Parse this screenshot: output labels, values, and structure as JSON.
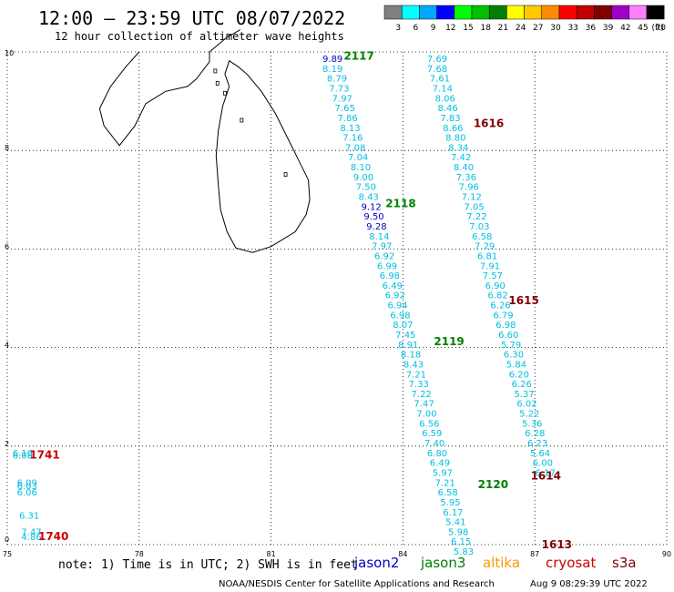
{
  "title": "12:00 – 23:59 UTC 08/07/2022",
  "subtitle": "12 hour collection of altimeter wave heights",
  "colorbar": {
    "unit": "(ft)",
    "bins": [
      {
        "label": "3",
        "color": "#7f7f7f"
      },
      {
        "label": "6",
        "color": "#00ffff"
      },
      {
        "label": "9",
        "color": "#00a8ff"
      },
      {
        "label": "12",
        "color": "#0000ff"
      },
      {
        "label": "15",
        "color": "#00ff00"
      },
      {
        "label": "18",
        "color": "#00c000"
      },
      {
        "label": "21",
        "color": "#008000"
      },
      {
        "label": "24",
        "color": "#ffff00"
      },
      {
        "label": "27",
        "color": "#ffc800"
      },
      {
        "label": "30",
        "color": "#ff8c00"
      },
      {
        "label": "33",
        "color": "#ff0000"
      },
      {
        "label": "36",
        "color": "#c00000"
      },
      {
        "label": "39",
        "color": "#800000"
      },
      {
        "label": "42",
        "color": "#a000c8"
      },
      {
        "label": "45",
        "color": "#ff80ff"
      },
      {
        "label": "70",
        "color": "#000000"
      }
    ]
  },
  "axes": {
    "lon_min": 75,
    "lon_max": 90,
    "lat_min": 0,
    "lat_max": 10,
    "x_ticks": [
      "75",
      "78",
      "81",
      "84",
      "87",
      "90"
    ],
    "y_ticks": [
      "0",
      "2",
      "4",
      "6",
      "8",
      "10"
    ],
    "grid": "dotted"
  },
  "colors": {
    "jason2": "#0000c8",
    "jason3": "#008000",
    "altika": "#ff9900",
    "cryosat": "#cc0000",
    "s3a": "#800000",
    "cyan": "#00bfe0"
  },
  "swh_marks": [
    {
      "lon": 82.4,
      "lat": 9.87,
      "v": "9.89",
      "c": "jason2"
    },
    {
      "lon": 82.4,
      "lat": 9.67,
      "v": "8.19",
      "c": "cyan"
    },
    {
      "lon": 82.5,
      "lat": 9.47,
      "v": "8.79",
      "c": "cyan"
    },
    {
      "lon": 82.55,
      "lat": 9.27,
      "v": "7.73",
      "c": "cyan"
    },
    {
      "lon": 82.62,
      "lat": 9.07,
      "v": "7.97",
      "c": "cyan"
    },
    {
      "lon": 82.68,
      "lat": 8.87,
      "v": "7.65",
      "c": "cyan"
    },
    {
      "lon": 82.74,
      "lat": 8.67,
      "v": "7.86",
      "c": "cyan"
    },
    {
      "lon": 82.8,
      "lat": 8.47,
      "v": "8.13",
      "c": "cyan"
    },
    {
      "lon": 82.86,
      "lat": 8.27,
      "v": "7.16",
      "c": "cyan"
    },
    {
      "lon": 82.92,
      "lat": 8.07,
      "v": "7.08",
      "c": "cyan"
    },
    {
      "lon": 82.98,
      "lat": 7.87,
      "v": "7.04",
      "c": "cyan"
    },
    {
      "lon": 83.04,
      "lat": 7.67,
      "v": "8.10",
      "c": "cyan"
    },
    {
      "lon": 83.1,
      "lat": 7.47,
      "v": "9.00",
      "c": "cyan"
    },
    {
      "lon": 83.16,
      "lat": 7.27,
      "v": "7.50",
      "c": "cyan"
    },
    {
      "lon": 83.22,
      "lat": 7.07,
      "v": "8.43",
      "c": "cyan"
    },
    {
      "lon": 83.28,
      "lat": 6.87,
      "v": "9.12",
      "c": "jason2"
    },
    {
      "lon": 83.34,
      "lat": 6.67,
      "v": "9.50",
      "c": "jason2"
    },
    {
      "lon": 83.4,
      "lat": 6.47,
      "v": "9.28",
      "c": "jason2"
    },
    {
      "lon": 83.46,
      "lat": 6.27,
      "v": "8.14",
      "c": "cyan"
    },
    {
      "lon": 83.52,
      "lat": 6.07,
      "v": "7.97",
      "c": "cyan"
    },
    {
      "lon": 83.58,
      "lat": 5.87,
      "v": "6.92",
      "c": "cyan"
    },
    {
      "lon": 83.64,
      "lat": 5.67,
      "v": "6.99",
      "c": "cyan"
    },
    {
      "lon": 83.7,
      "lat": 5.47,
      "v": "6.98",
      "c": "cyan"
    },
    {
      "lon": 83.76,
      "lat": 5.27,
      "v": "6.49",
      "c": "cyan"
    },
    {
      "lon": 83.82,
      "lat": 5.07,
      "v": "6.92",
      "c": "cyan"
    },
    {
      "lon": 83.88,
      "lat": 4.87,
      "v": "6.94",
      "c": "cyan"
    },
    {
      "lon": 83.94,
      "lat": 4.67,
      "v": "6.98",
      "c": "cyan"
    },
    {
      "lon": 84.0,
      "lat": 4.47,
      "v": "8.07",
      "c": "cyan"
    },
    {
      "lon": 84.06,
      "lat": 4.27,
      "v": "7.45",
      "c": "cyan"
    },
    {
      "lon": 84.12,
      "lat": 4.07,
      "v": "8.91",
      "c": "cyan"
    },
    {
      "lon": 84.18,
      "lat": 3.87,
      "v": "8.18",
      "c": "cyan"
    },
    {
      "lon": 84.24,
      "lat": 3.67,
      "v": "8.43",
      "c": "cyan"
    },
    {
      "lon": 84.3,
      "lat": 3.47,
      "v": "7.21",
      "c": "cyan"
    },
    {
      "lon": 84.36,
      "lat": 3.27,
      "v": "7.33",
      "c": "cyan"
    },
    {
      "lon": 84.42,
      "lat": 3.07,
      "v": "7.22",
      "c": "cyan"
    },
    {
      "lon": 84.48,
      "lat": 2.87,
      "v": "7.47",
      "c": "cyan"
    },
    {
      "lon": 84.54,
      "lat": 2.67,
      "v": "7.00",
      "c": "cyan"
    },
    {
      "lon": 84.6,
      "lat": 2.47,
      "v": "6.56",
      "c": "cyan"
    },
    {
      "lon": 84.66,
      "lat": 2.27,
      "v": "6.59",
      "c": "cyan"
    },
    {
      "lon": 84.72,
      "lat": 2.07,
      "v": "7.40",
      "c": "cyan"
    },
    {
      "lon": 84.78,
      "lat": 1.87,
      "v": "6.80",
      "c": "cyan"
    },
    {
      "lon": 84.84,
      "lat": 1.67,
      "v": "6.49",
      "c": "cyan"
    },
    {
      "lon": 84.9,
      "lat": 1.47,
      "v": "5.97",
      "c": "cyan"
    },
    {
      "lon": 84.96,
      "lat": 1.27,
      "v": "7.21",
      "c": "cyan"
    },
    {
      "lon": 85.02,
      "lat": 1.07,
      "v": "6.58",
      "c": "cyan"
    },
    {
      "lon": 85.08,
      "lat": 0.87,
      "v": "5.95",
      "c": "cyan"
    },
    {
      "lon": 85.14,
      "lat": 0.67,
      "v": "6.17",
      "c": "cyan"
    },
    {
      "lon": 85.2,
      "lat": 0.47,
      "v": "5.41",
      "c": "cyan"
    },
    {
      "lon": 85.26,
      "lat": 0.27,
      "v": "5.98",
      "c": "cyan"
    },
    {
      "lon": 85.32,
      "lat": 0.07,
      "v": "6.15",
      "c": "cyan"
    },
    {
      "lon": 85.38,
      "lat": -0.13,
      "v": "5.83",
      "c": "cyan"
    },
    {
      "lon": 84.78,
      "lat": 9.87,
      "v": "7.69",
      "c": "cyan"
    },
    {
      "lon": 84.78,
      "lat": 9.67,
      "v": "7.68",
      "c": "cyan"
    },
    {
      "lon": 84.84,
      "lat": 9.47,
      "v": "7.61",
      "c": "cyan"
    },
    {
      "lon": 84.9,
      "lat": 9.27,
      "v": "7.14",
      "c": "cyan"
    },
    {
      "lon": 84.96,
      "lat": 9.07,
      "v": "8.06",
      "c": "cyan"
    },
    {
      "lon": 85.02,
      "lat": 8.87,
      "v": "8.46",
      "c": "cyan"
    },
    {
      "lon": 85.08,
      "lat": 8.67,
      "v": "7.83",
      "c": "cyan"
    },
    {
      "lon": 85.14,
      "lat": 8.47,
      "v": "8.66",
      "c": "cyan"
    },
    {
      "lon": 85.2,
      "lat": 8.27,
      "v": "8.80",
      "c": "cyan"
    },
    {
      "lon": 85.26,
      "lat": 8.07,
      "v": "8.34",
      "c": "cyan"
    },
    {
      "lon": 85.32,
      "lat": 7.87,
      "v": "7.42",
      "c": "cyan"
    },
    {
      "lon": 85.38,
      "lat": 7.67,
      "v": "8.40",
      "c": "cyan"
    },
    {
      "lon": 85.44,
      "lat": 7.47,
      "v": "7.36",
      "c": "cyan"
    },
    {
      "lon": 85.5,
      "lat": 7.27,
      "v": "7.96",
      "c": "cyan"
    },
    {
      "lon": 85.56,
      "lat": 7.07,
      "v": "7.12",
      "c": "cyan"
    },
    {
      "lon": 85.62,
      "lat": 6.87,
      "v": "7.05",
      "c": "cyan"
    },
    {
      "lon": 85.68,
      "lat": 6.67,
      "v": "7.22",
      "c": "cyan"
    },
    {
      "lon": 85.74,
      "lat": 6.47,
      "v": "7.03",
      "c": "cyan"
    },
    {
      "lon": 85.8,
      "lat": 6.27,
      "v": "6.58",
      "c": "cyan"
    },
    {
      "lon": 85.86,
      "lat": 6.07,
      "v": "7.29",
      "c": "cyan"
    },
    {
      "lon": 85.92,
      "lat": 5.87,
      "v": "6.81",
      "c": "cyan"
    },
    {
      "lon": 85.98,
      "lat": 5.67,
      "v": "7.91",
      "c": "cyan"
    },
    {
      "lon": 86.04,
      "lat": 5.47,
      "v": "7.57",
      "c": "cyan"
    },
    {
      "lon": 86.1,
      "lat": 5.27,
      "v": "6.90",
      "c": "cyan"
    },
    {
      "lon": 86.16,
      "lat": 5.07,
      "v": "6.82",
      "c": "cyan"
    },
    {
      "lon": 86.22,
      "lat": 4.87,
      "v": "6.26",
      "c": "cyan"
    },
    {
      "lon": 86.28,
      "lat": 4.67,
      "v": "6.79",
      "c": "cyan"
    },
    {
      "lon": 86.34,
      "lat": 4.47,
      "v": "6.98",
      "c": "cyan"
    },
    {
      "lon": 86.4,
      "lat": 4.27,
      "v": "6.60",
      "c": "cyan"
    },
    {
      "lon": 86.46,
      "lat": 4.07,
      "v": "5.79",
      "c": "cyan"
    },
    {
      "lon": 86.52,
      "lat": 3.87,
      "v": "6.30",
      "c": "cyan"
    },
    {
      "lon": 86.58,
      "lat": 3.67,
      "v": "5.84",
      "c": "cyan"
    },
    {
      "lon": 86.64,
      "lat": 3.47,
      "v": "6.20",
      "c": "cyan"
    },
    {
      "lon": 86.7,
      "lat": 3.27,
      "v": "6.26",
      "c": "cyan"
    },
    {
      "lon": 86.76,
      "lat": 3.07,
      "v": "5.37",
      "c": "cyan"
    },
    {
      "lon": 86.82,
      "lat": 2.87,
      "v": "6.02",
      "c": "cyan"
    },
    {
      "lon": 86.88,
      "lat": 2.67,
      "v": "5.22",
      "c": "cyan"
    },
    {
      "lon": 86.94,
      "lat": 2.47,
      "v": "5.36",
      "c": "cyan"
    },
    {
      "lon": 87.0,
      "lat": 2.27,
      "v": "6.28",
      "c": "cyan"
    },
    {
      "lon": 87.06,
      "lat": 2.07,
      "v": "6.23",
      "c": "cyan"
    },
    {
      "lon": 87.12,
      "lat": 1.87,
      "v": "5.64",
      "c": "cyan"
    },
    {
      "lon": 87.18,
      "lat": 1.67,
      "v": "6.00",
      "c": "cyan"
    },
    {
      "lon": 87.24,
      "lat": 1.47,
      "v": "6.17",
      "c": "cyan"
    },
    {
      "lon": 75.35,
      "lat": 1.87,
      "v": "6.16",
      "c": "cyan"
    },
    {
      "lon": 75.35,
      "lat": 1.82,
      "v": "6.08",
      "c": "cyan"
    },
    {
      "lon": 75.45,
      "lat": 1.27,
      "v": "6.09",
      "c": "cyan"
    },
    {
      "lon": 75.45,
      "lat": 1.2,
      "v": "6.03",
      "c": "cyan"
    },
    {
      "lon": 75.45,
      "lat": 1.07,
      "v": "6.06",
      "c": "cyan"
    },
    {
      "lon": 75.5,
      "lat": 0.6,
      "v": "6.31",
      "c": "cyan"
    },
    {
      "lon": 75.55,
      "lat": 0.27,
      "v": "7.47",
      "c": "cyan"
    },
    {
      "lon": 75.55,
      "lat": 0.17,
      "v": "4.86",
      "c": "cyan"
    }
  ],
  "pass_labels": [
    {
      "lon": 83.0,
      "lat": 9.92,
      "v": "2117",
      "c": "jason3"
    },
    {
      "lon": 83.95,
      "lat": 6.92,
      "v": "2118",
      "c": "jason3"
    },
    {
      "lon": 85.05,
      "lat": 4.12,
      "v": "2119",
      "c": "jason3"
    },
    {
      "lon": 86.05,
      "lat": 1.22,
      "v": "2120",
      "c": "jason3"
    },
    {
      "lon": 85.95,
      "lat": 8.55,
      "v": "1616",
      "c": "s3a"
    },
    {
      "lon": 86.75,
      "lat": 4.95,
      "v": "1615",
      "c": "s3a"
    },
    {
      "lon": 87.25,
      "lat": 1.4,
      "v": "1614",
      "c": "s3a"
    },
    {
      "lon": 87.5,
      "lat": 0.0,
      "v": "1613",
      "c": "s3a"
    },
    {
      "lon": 75.85,
      "lat": 1.82,
      "v": "1741",
      "c": "cryosat"
    },
    {
      "lon": 76.05,
      "lat": 0.17,
      "v": "1740",
      "c": "cryosat"
    }
  ],
  "legend": {
    "note": "note: 1) Time is in UTC; 2) SWH is in feet",
    "items": [
      {
        "label": "jason2",
        "c": "jason2"
      },
      {
        "label": "jason3",
        "c": "jason3"
      },
      {
        "label": "altika",
        "c": "altika"
      },
      {
        "label": "cryosat",
        "c": "cryosat"
      },
      {
        "label": "s3a",
        "c": "s3a"
      }
    ]
  },
  "footer": {
    "credit": "NOAA/NESDIS Center for Satellite Applications and Research",
    "stamp": "Aug  9 08:29:39 UTC 2022"
  }
}
